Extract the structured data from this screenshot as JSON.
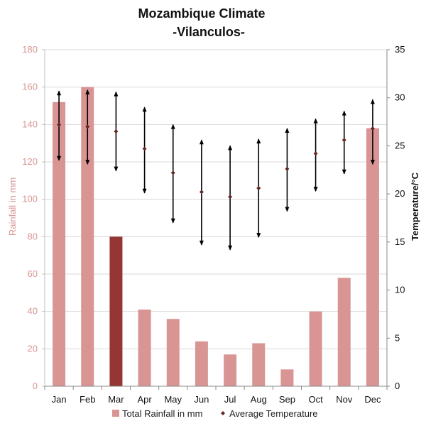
{
  "chart_data": {
    "type": "bar",
    "title": "Mozambique Climate",
    "subtitle": "-Vilanculos-",
    "categories": [
      "Jan",
      "Feb",
      "Mar",
      "Apr",
      "May",
      "Jun",
      "Jul",
      "Aug",
      "Sep",
      "Oct",
      "Nov",
      "Dec"
    ],
    "rainfall": {
      "name": "Total Rainfall in mm",
      "values": [
        152,
        160,
        80,
        41,
        36,
        24,
        17,
        23,
        9,
        40,
        58,
        138
      ],
      "color": "#d99594",
      "highlight_index": 2,
      "highlight_color": "#943634"
    },
    "temperature": {
      "name": "Average Temperature",
      "avg": [
        27.2,
        27,
        26.5,
        24.7,
        22.2,
        20.2,
        19.7,
        20.6,
        22.6,
        24.2,
        25.6,
        26.8
      ],
      "max": [
        30.7,
        30.8,
        30.6,
        29,
        27.2,
        25.6,
        25,
        25.7,
        26.8,
        27.8,
        28.6,
        29.8
      ],
      "min": [
        23.5,
        23.1,
        22.4,
        20.1,
        17,
        14.7,
        14.2,
        15.5,
        18.2,
        20.3,
        22.1,
        23.1
      ],
      "color": "#632523"
    },
    "y_left": {
      "label": "Rainfall in mm",
      "min": 0,
      "max": 180,
      "ticks": [
        0,
        20,
        40,
        60,
        80,
        100,
        120,
        140,
        160,
        180
      ],
      "color": "#d99594"
    },
    "y_right": {
      "label": "Temperature/°C",
      "min": 0,
      "max": 35,
      "ticks": [
        0,
        5,
        10,
        15,
        20,
        25,
        30,
        35
      ]
    },
    "grid": true,
    "legend_position": "bottom"
  }
}
